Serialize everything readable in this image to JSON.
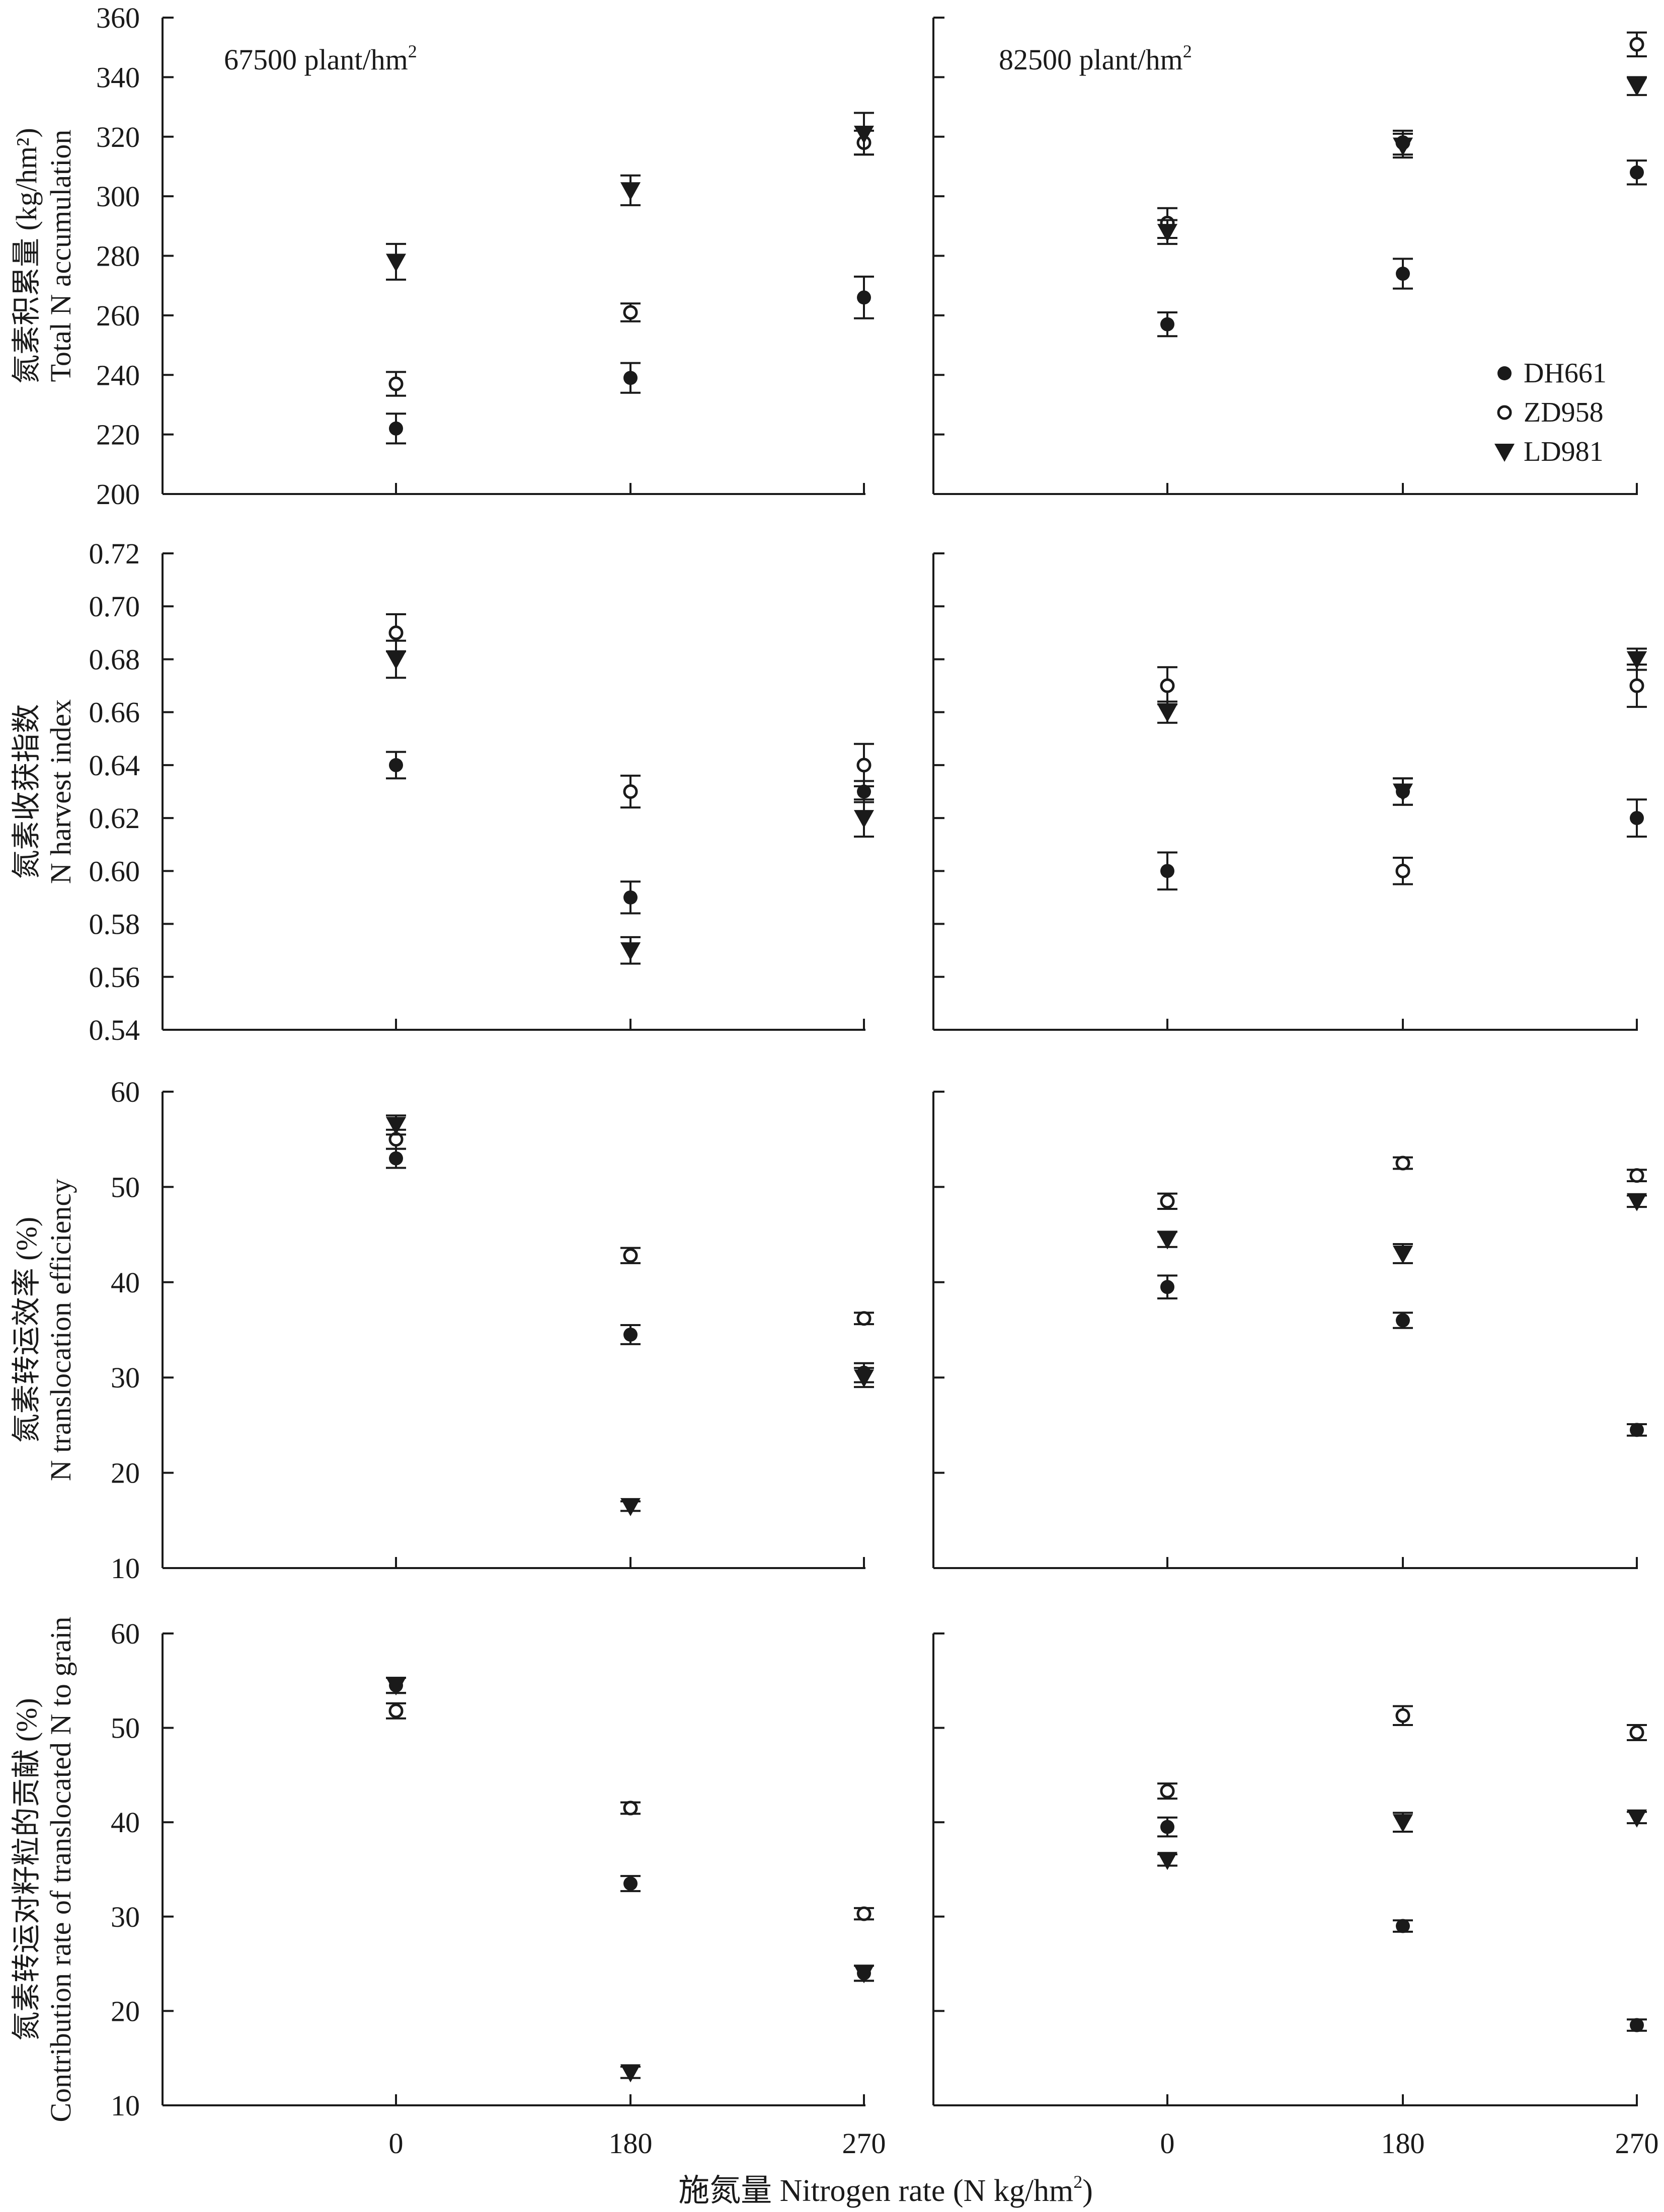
{
  "chart_data": [
    {
      "type": "scatter",
      "ylabel_cn": "氮素积累量 (kg/hm²)",
      "ylabel_en": "Total N accumulation",
      "ylim": [
        200,
        360
      ],
      "yticks": [
        "200",
        "220",
        "240",
        "260",
        "280",
        "300",
        "320",
        "340",
        "360"
      ],
      "panels": [
        {
          "title": "67500 plant/hm",
          "title_sup": "2",
          "x": [
            "0",
            "180",
            "270"
          ],
          "series": [
            {
              "name": "DH661",
              "values": [
                222,
                239,
                266
              ],
              "errors": [
                5,
                5,
                7
              ]
            },
            {
              "name": "ZD958",
              "values": [
                237,
                261,
                318
              ],
              "errors": [
                4,
                3,
                4
              ]
            },
            {
              "name": "LD981",
              "values": [
                278,
                302,
                321
              ],
              "errors": [
                6,
                5,
                7
              ]
            }
          ]
        },
        {
          "title": "82500 plant/hm",
          "title_sup": "2",
          "x": [
            "0",
            "180",
            "270"
          ],
          "series": [
            {
              "name": "DH661",
              "values": [
                257,
                274,
                308
              ],
              "errors": [
                4,
                5,
                4
              ]
            },
            {
              "name": "ZD958",
              "values": [
                291,
                318,
                351
              ],
              "errors": [
                5,
                4,
                4
              ]
            },
            {
              "name": "LD981",
              "values": [
                288,
                317,
                337
              ],
              "errors": [
                4,
                4,
                3
              ]
            }
          ]
        }
      ]
    },
    {
      "type": "scatter",
      "ylabel_cn": "氮素收获指数",
      "ylabel_en": "N harvest index",
      "ylim": [
        0.54,
        0.72
      ],
      "yticks": [
        "0.54",
        "0.56",
        "0.58",
        "0.60",
        "0.62",
        "0.64",
        "0.66",
        "0.68",
        "0.70",
        "0.72"
      ],
      "panels": [
        {
          "x": [
            "0",
            "180",
            "270"
          ],
          "series": [
            {
              "name": "DH661",
              "values": [
                0.64,
                0.59,
                0.63
              ],
              "errors": [
                0.005,
                0.006,
                0.004
              ]
            },
            {
              "name": "ZD958",
              "values": [
                0.69,
                0.63,
                0.64
              ],
              "errors": [
                0.007,
                0.006,
                0.008
              ]
            },
            {
              "name": "LD981",
              "values": [
                0.68,
                0.57,
                0.62
              ],
              "errors": [
                0.007,
                0.005,
                0.007
              ]
            }
          ]
        },
        {
          "x": [
            "0",
            "180",
            "270"
          ],
          "series": [
            {
              "name": "DH661",
              "values": [
                0.6,
                0.63,
                0.62
              ],
              "errors": [
                0.007,
                0.005,
                0.007
              ]
            },
            {
              "name": "ZD958",
              "values": [
                0.67,
                0.6,
                0.67
              ],
              "errors": [
                0.007,
                0.005,
                0.008
              ]
            },
            {
              "name": "LD981",
              "values": [
                0.66,
                0.63,
                0.68
              ],
              "errors": [
                0.004,
                0.005,
                0.004
              ]
            }
          ]
        }
      ]
    },
    {
      "type": "scatter",
      "ylabel_cn": "氮素转运效率 (%)",
      "ylabel_en": "N translocation efficiency",
      "ylim": [
        10,
        60
      ],
      "yticks": [
        "10",
        "20",
        "30",
        "40",
        "50",
        "60"
      ],
      "panels": [
        {
          "x": [
            "0",
            "180",
            "270"
          ],
          "series": [
            {
              "name": "DH661",
              "values": [
                53,
                34.5,
                30.5
              ],
              "errors": [
                1.0,
                1.0,
                1.0
              ]
            },
            {
              "name": "ZD958",
              "values": [
                55,
                42.8,
                36.2
              ],
              "errors": [
                1.0,
                0.8,
                0.6
              ]
            },
            {
              "name": "LD981",
              "values": [
                56.5,
                16.5,
                30
              ],
              "errors": [
                1.0,
                0.5,
                1.0
              ]
            }
          ]
        },
        {
          "x": [
            "0",
            "180",
            "270"
          ],
          "series": [
            {
              "name": "DH661",
              "values": [
                39.5,
                36,
                24.5
              ],
              "errors": [
                1.2,
                0.8,
                0.6
              ]
            },
            {
              "name": "ZD958",
              "values": [
                48.5,
                52.5,
                51.2
              ],
              "errors": [
                0.8,
                0.6,
                0.6
              ]
            },
            {
              "name": "LD981",
              "values": [
                44.5,
                43,
                48.5
              ],
              "errors": [
                0.8,
                1.0,
                0.6
              ]
            }
          ]
        }
      ]
    },
    {
      "type": "scatter",
      "ylabel_cn": "氮素转运对籽粒的贡献 (%)",
      "ylabel_en": "Contribution rate of translocated N to grain",
      "ylim": [
        10,
        60
      ],
      "yticks": [
        "10",
        "20",
        "30",
        "40",
        "50",
        "60"
      ],
      "panels": [
        {
          "x": [
            "0",
            "180",
            "270"
          ],
          "series": [
            {
              "name": "DH661",
              "values": [
                54.5,
                33.5,
                24
              ],
              "errors": [
                0.8,
                0.8,
                0.8
              ]
            },
            {
              "name": "ZD958",
              "values": [
                51.8,
                41.5,
                30.3
              ],
              "errors": [
                0.8,
                0.6,
                0.6
              ]
            },
            {
              "name": "LD981",
              "values": [
                54.5,
                13.5,
                24
              ],
              "errors": [
                0.8,
                0.6,
                0.8
              ]
            }
          ]
        },
        {
          "x": [
            "0",
            "180",
            "270"
          ],
          "series": [
            {
              "name": "DH661",
              "values": [
                39.5,
                29,
                18.5
              ],
              "errors": [
                1.0,
                0.6,
                0.6
              ]
            },
            {
              "name": "ZD958",
              "values": [
                43.3,
                51.3,
                49.5
              ],
              "errors": [
                0.8,
                1.0,
                0.8
              ]
            },
            {
              "name": "LD981",
              "values": [
                36,
                40,
                40.5
              ],
              "errors": [
                0.6,
                1.0,
                0.6
              ]
            }
          ]
        }
      ]
    }
  ],
  "xlabel_cn": "施氮量",
  "xlabel_en": "Nitrogen rate (N kg/hm",
  "xlabel_sup": "2",
  "xlabel_close": ")",
  "legend": [
    {
      "name": "DH661",
      "marker": "filled-circle"
    },
    {
      "name": "ZD958",
      "marker": "open-circle"
    },
    {
      "name": "LD981",
      "marker": "filled-triangle-down"
    }
  ],
  "colors": {
    "ink": "#1a1a1a",
    "background": "#ffffff"
  }
}
